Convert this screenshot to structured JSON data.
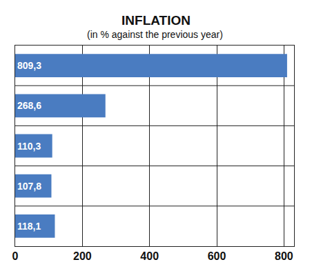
{
  "chart_data": {
    "type": "bar",
    "orientation": "horizontal",
    "title": "INFLATION",
    "subtitle": "(in % against the previous year)",
    "categories": [
      null,
      null,
      null,
      null,
      null
    ],
    "values": [
      809.3,
      268.6,
      110.3,
      107.8,
      118.1
    ],
    "value_labels": [
      "809,3",
      "268,6",
      "110,3",
      "107,8",
      "118,1"
    ],
    "data_labels": true,
    "color": "#4a7cc1",
    "xlim": [
      0,
      830
    ],
    "xticks": [
      0,
      200,
      400,
      600,
      800
    ],
    "grid": true,
    "tick_labels": "x"
  }
}
